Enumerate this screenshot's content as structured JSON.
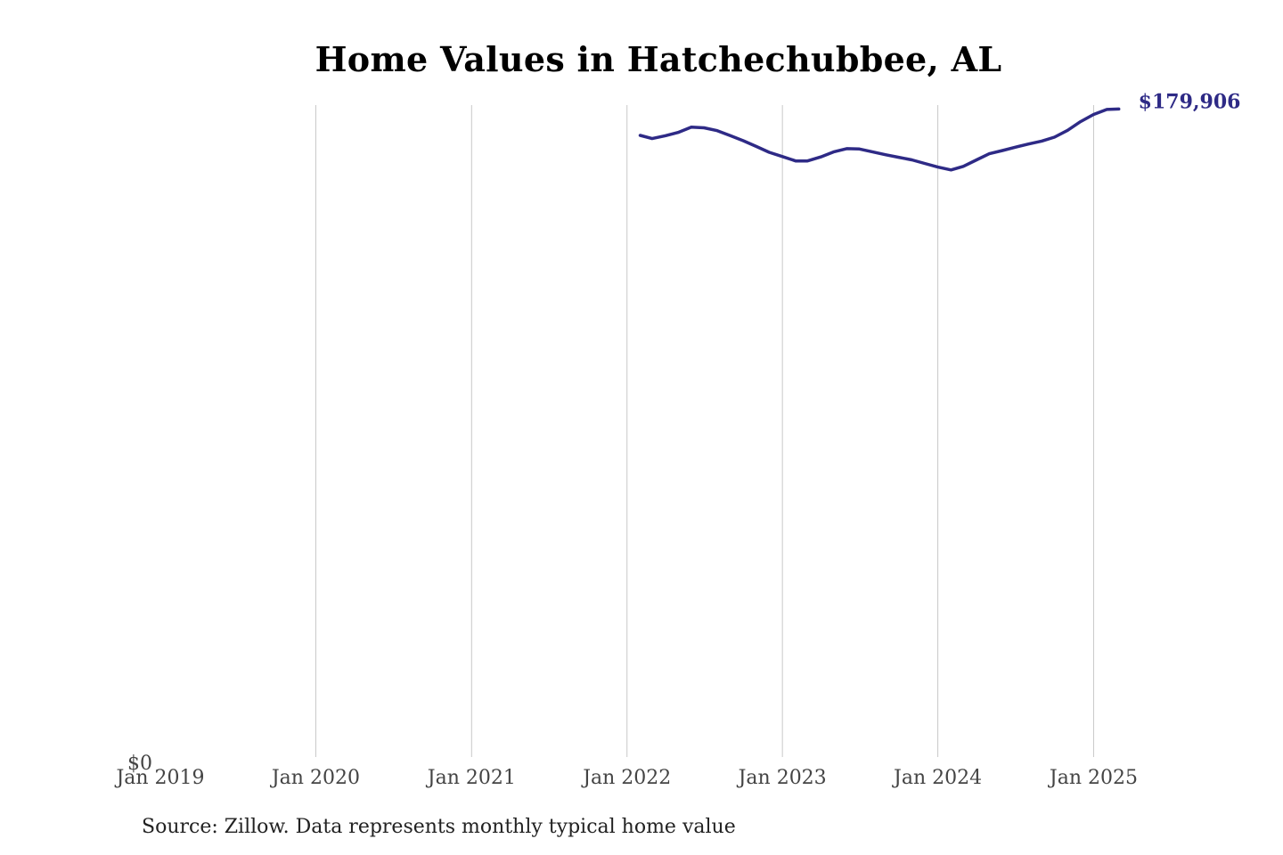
{
  "chart_data": {
    "type": "line",
    "title": "Home Values in Hatchechubbee, AL",
    "xlabel": "",
    "ylabel": "",
    "x_ticks": [
      {
        "date": "2019-01-01",
        "label": "Jan 2019"
      },
      {
        "date": "2020-01-01",
        "label": "Jan 2020"
      },
      {
        "date": "2021-01-01",
        "label": "Jan 2021"
      },
      {
        "date": "2022-01-01",
        "label": "Jan 2022"
      },
      {
        "date": "2023-01-01",
        "label": "Jan 2023"
      },
      {
        "date": "2024-01-01",
        "label": "Jan 2024"
      },
      {
        "date": "2025-01-01",
        "label": "Jan 2025"
      }
    ],
    "xlim": [
      "2019-01-01",
      "2025-03-31"
    ],
    "y_ticks": [
      {
        "value": 0,
        "label": "$0"
      }
    ],
    "ylim": [
      0,
      181000
    ],
    "grid": "vertical",
    "legend": "none",
    "series": [
      {
        "color": "#2e2a86",
        "end_label": "$179,906",
        "points": [
          {
            "x": "2022-02-01",
            "y": 172600
          },
          {
            "x": "2022-03-01",
            "y": 171700
          },
          {
            "x": "2022-04-01",
            "y": 172500
          },
          {
            "x": "2022-05-01",
            "y": 173400
          },
          {
            "x": "2022-06-01",
            "y": 174900
          },
          {
            "x": "2022-07-01",
            "y": 174700
          },
          {
            "x": "2022-08-01",
            "y": 173900
          },
          {
            "x": "2022-09-01",
            "y": 172500
          },
          {
            "x": "2022-10-01",
            "y": 171100
          },
          {
            "x": "2022-11-01",
            "y": 169500
          },
          {
            "x": "2022-12-01",
            "y": 167900
          },
          {
            "x": "2023-01-01",
            "y": 166700
          },
          {
            "x": "2023-02-01",
            "y": 165500
          },
          {
            "x": "2023-03-01",
            "y": 165500
          },
          {
            "x": "2023-04-01",
            "y": 166600
          },
          {
            "x": "2023-05-01",
            "y": 168000
          },
          {
            "x": "2023-06-01",
            "y": 168900
          },
          {
            "x": "2023-07-01",
            "y": 168800
          },
          {
            "x": "2023-08-01",
            "y": 168000
          },
          {
            "x": "2023-09-01",
            "y": 167200
          },
          {
            "x": "2023-10-01",
            "y": 166500
          },
          {
            "x": "2023-11-01",
            "y": 165800
          },
          {
            "x": "2023-12-01",
            "y": 164800
          },
          {
            "x": "2024-01-01",
            "y": 163800
          },
          {
            "x": "2024-02-01",
            "y": 163000
          },
          {
            "x": "2024-03-01",
            "y": 164000
          },
          {
            "x": "2024-04-01",
            "y": 165800
          },
          {
            "x": "2024-05-01",
            "y": 167500
          },
          {
            "x": "2024-06-01",
            "y": 168400
          },
          {
            "x": "2024-07-01",
            "y": 169300
          },
          {
            "x": "2024-08-01",
            "y": 170200
          },
          {
            "x": "2024-09-01",
            "y": 171000
          },
          {
            "x": "2024-10-01",
            "y": 172100
          },
          {
            "x": "2024-11-01",
            "y": 174000
          },
          {
            "x": "2024-12-01",
            "y": 176400
          },
          {
            "x": "2025-01-01",
            "y": 178400
          },
          {
            "x": "2025-02-01",
            "y": 179800
          },
          {
            "x": "2025-03-01",
            "y": 179906
          }
        ]
      }
    ],
    "colors": {
      "line": "#2e2a86",
      "grid": "#c8c8c8",
      "text": "#444444"
    }
  },
  "source_note": "Source: Zillow. Data represents monthly typical home value"
}
